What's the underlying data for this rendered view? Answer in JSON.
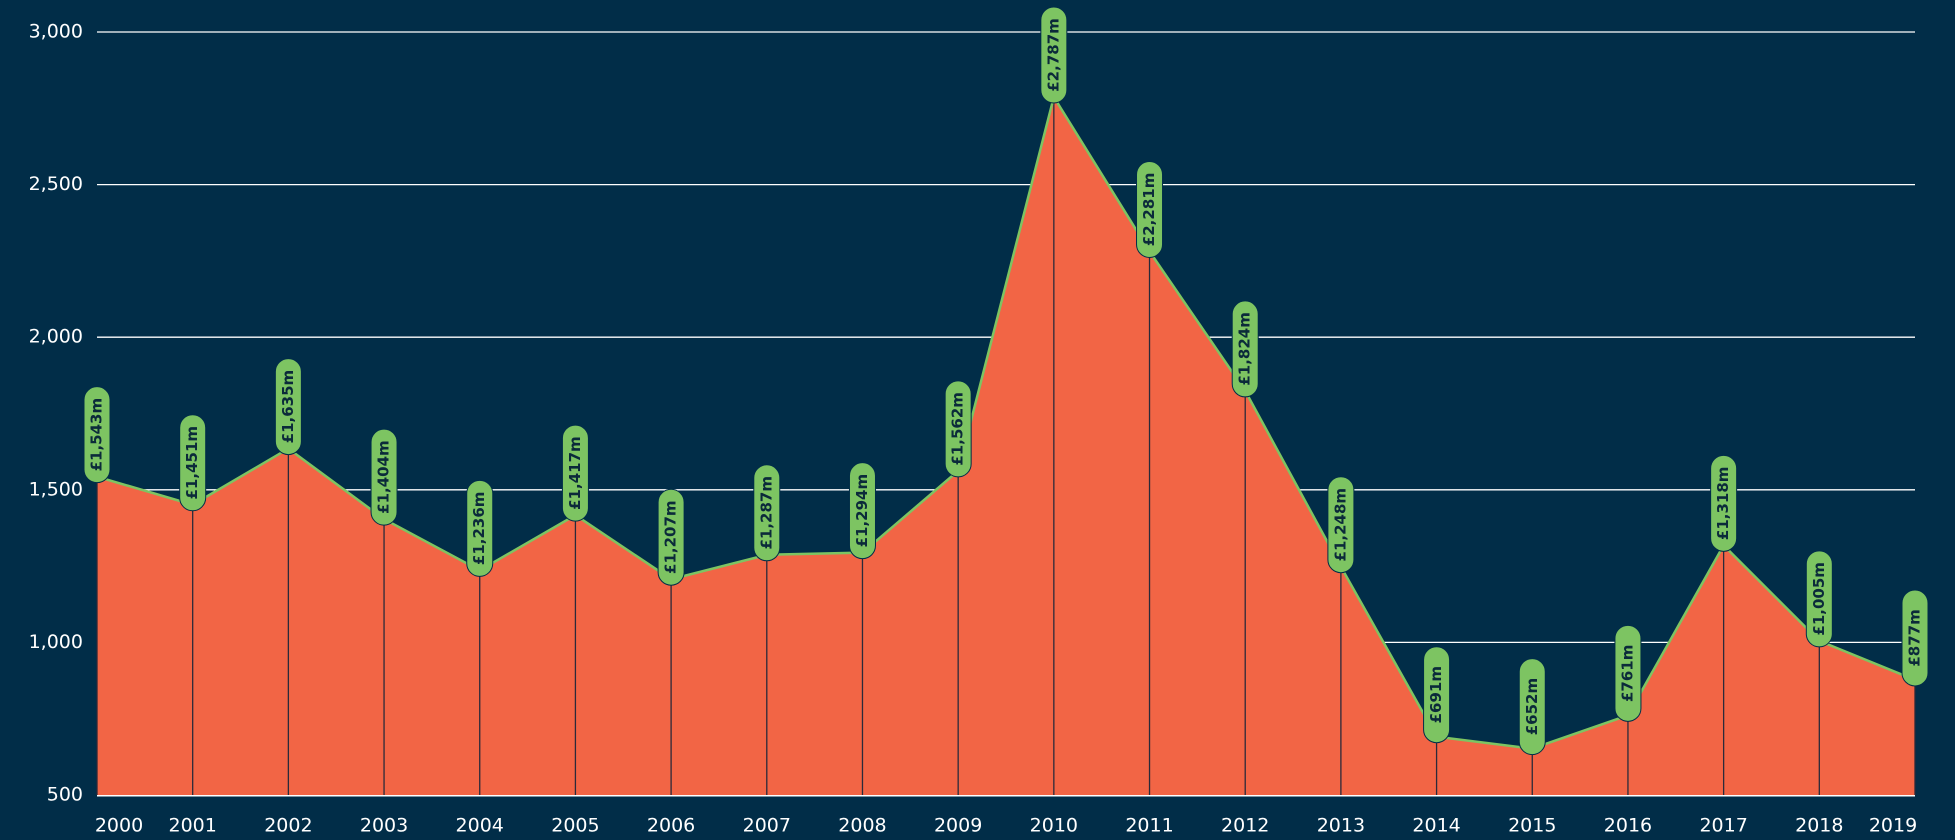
{
  "chart_data": {
    "type": "area",
    "categories": [
      "2000",
      "2001",
      "2002",
      "2003",
      "2004",
      "2005",
      "2006",
      "2007",
      "2008",
      "2009",
      "2010",
      "2011",
      "2012",
      "2013",
      "2014",
      "2015",
      "2016",
      "2017",
      "2018",
      "2019"
    ],
    "values": [
      1543,
      1451,
      1635,
      1404,
      1236,
      1417,
      1207,
      1287,
      1294,
      1562,
      2787,
      2281,
      1824,
      1248,
      691,
      652,
      761,
      1318,
      1005,
      877
    ],
    "value_labels": [
      "£1,543m",
      "£1,451m",
      "£1,635m",
      "£1,404m",
      "£1,236m",
      "£1,417m",
      "£1,207m",
      "£1,287m",
      "£1,294m",
      "£1,562m",
      "£2,787m",
      "£2,281m",
      "£1,824m",
      "£1,248m",
      "£691m",
      "£652m",
      "£761m",
      "£1,318m",
      "£1,005m",
      "£877m"
    ],
    "color": "#f26545",
    "line_color": "#7dc462",
    "ylim": [
      500,
      3000
    ],
    "yticks": [
      500,
      {
        "value": 1000,
        "label": "1,000"
      },
      {
        "value": 1500,
        "label": "1,500"
      },
      {
        "value": 2000,
        "label": "2,000"
      },
      {
        "value": 2500,
        "label": "2,500"
      },
      {
        "value": 3000,
        "label": "3,000"
      }
    ],
    "grid": true
  }
}
